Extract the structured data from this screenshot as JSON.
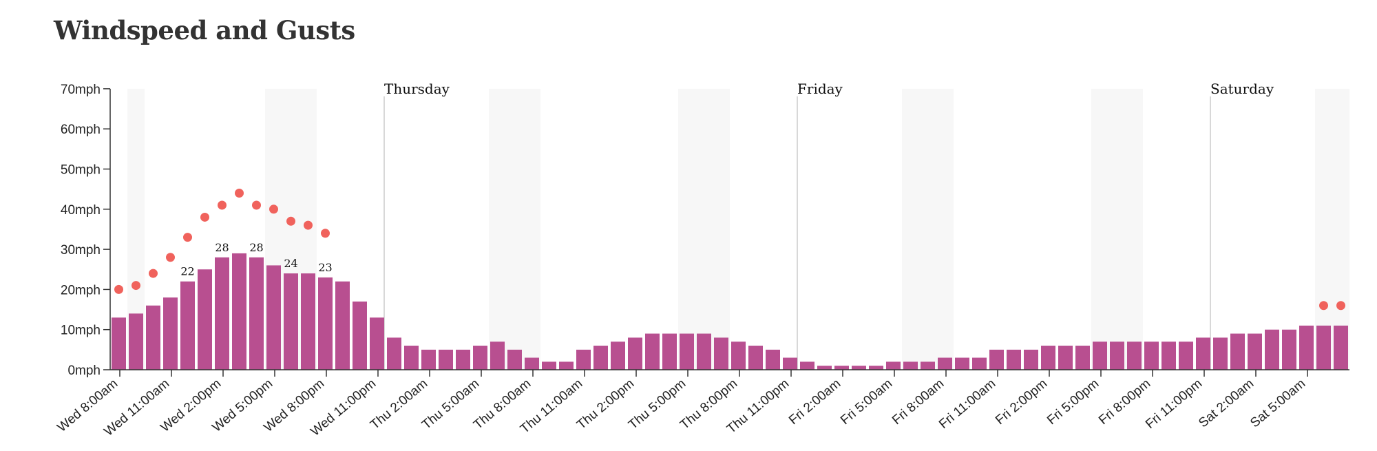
{
  "chart_data": {
    "type": "bar",
    "title": "Windspeed and Gusts",
    "xlabel": "",
    "ylabel": "",
    "ylim": [
      0,
      70
    ],
    "y_ticks": [
      "0mph",
      "10mph",
      "20mph",
      "30mph",
      "40mph",
      "50mph",
      "60mph",
      "70mph"
    ],
    "x_tick_labels": [
      "Wed 8:00am",
      "Wed 11:00am",
      "Wed 2:00pm",
      "Wed 5:00pm",
      "Wed 8:00pm",
      "Wed 11:00pm",
      "Thu 2:00am",
      "Thu 5:00am",
      "Thu 8:00am",
      "Thu 11:00am",
      "Thu 2:00pm",
      "Thu 5:00pm",
      "Thu 8:00pm",
      "Thu 11:00pm",
      "Fri 2:00am",
      "Fri 5:00am",
      "Fri 8:00am",
      "Fri 11:00am",
      "Fri 2:00pm",
      "Fri 5:00pm",
      "Fri 8:00pm",
      "Fri 11:00pm",
      "Sat 2:00am",
      "Sat 5:00am"
    ],
    "series": [
      {
        "name": "Windspeed",
        "color": "#b84f90",
        "values": [
          13,
          14,
          16,
          18,
          22,
          25,
          28,
          29,
          28,
          26,
          24,
          24,
          23,
          22,
          17,
          13,
          8,
          6,
          5,
          5,
          5,
          6,
          7,
          5,
          3,
          2,
          2,
          5,
          6,
          7,
          8,
          9,
          9,
          9,
          9,
          8,
          7,
          6,
          5,
          3,
          2,
          1,
          1,
          1,
          1,
          2,
          2,
          2,
          3,
          3,
          3,
          5,
          5,
          5,
          6,
          6,
          6,
          7,
          7,
          7,
          7,
          7,
          7,
          8,
          8,
          9,
          9,
          10,
          10,
          11,
          11,
          11
        ]
      },
      {
        "name": "Gusts",
        "color": "#f0625c",
        "values": [
          20,
          21,
          24,
          28,
          33,
          38,
          41,
          44,
          41,
          40,
          37,
          36,
          34,
          null,
          null,
          null,
          null,
          null,
          null,
          null,
          null,
          null,
          null,
          null,
          null,
          null,
          null,
          null,
          null,
          null,
          null,
          null,
          null,
          null,
          null,
          null,
          null,
          null,
          null,
          null,
          null,
          null,
          null,
          null,
          null,
          null,
          null,
          null,
          null,
          null,
          null,
          null,
          null,
          null,
          null,
          null,
          null,
          null,
          null,
          null,
          null,
          null,
          null,
          null,
          null,
          null,
          null,
          null,
          null,
          null,
          16,
          16
        ]
      }
    ],
    "bar_labels": [
      {
        "index": 4,
        "text": "22"
      },
      {
        "index": 6,
        "text": "28"
      },
      {
        "index": 8,
        "text": "28"
      },
      {
        "index": 10,
        "text": "24"
      },
      {
        "index": 12,
        "text": "23"
      }
    ],
    "day_markers": [
      {
        "index": 16,
        "label": "Thursday"
      },
      {
        "index": 40,
        "label": "Friday"
      },
      {
        "index": 64,
        "label": "Saturday"
      }
    ],
    "night_shading": [
      [
        1,
        1
      ],
      [
        9,
        11
      ],
      [
        22,
        24
      ],
      [
        33,
        35
      ],
      [
        46,
        48
      ],
      [
        57,
        59
      ],
      [
        70,
        71
      ]
    ],
    "grid": false,
    "legend": "none"
  }
}
